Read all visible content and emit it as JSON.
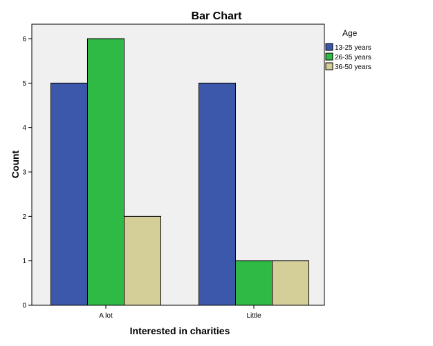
{
  "chart_data": {
    "type": "bar",
    "title": "Bar Chart",
    "xlabel": "Interested in charities",
    "ylabel": "Count",
    "categories": [
      "A lot",
      "Little"
    ],
    "series": [
      {
        "name": "13-25 years",
        "values": [
          5,
          5
        ],
        "color": "#3c58ab"
      },
      {
        "name": "26-35 years",
        "values": [
          6,
          1
        ],
        "color": "#2fba45"
      },
      {
        "name": "36-50 years",
        "values": [
          2,
          1
        ],
        "color": "#d4cf99"
      }
    ],
    "ylim": [
      0,
      6
    ],
    "yticks": [
      0,
      1,
      2,
      3,
      4,
      5,
      6
    ],
    "grid": false,
    "legend_title": "Age",
    "legend_position": "top-right",
    "plot_background": "#f0f0f0"
  }
}
